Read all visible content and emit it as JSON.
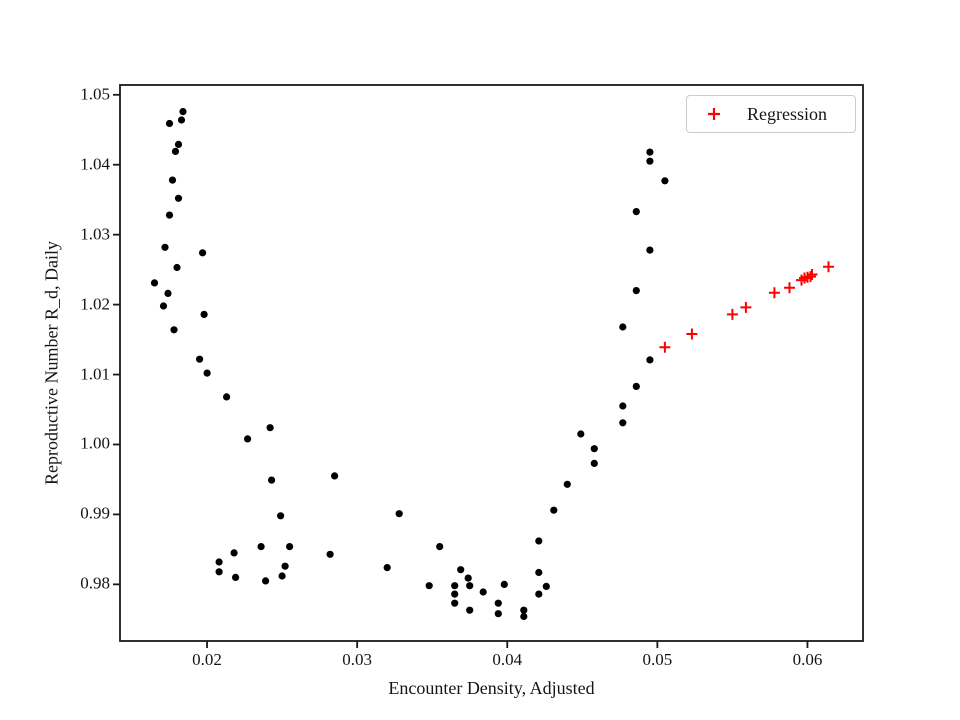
{
  "figure_title": "",
  "legend": {
    "position": "upper right",
    "entries": [
      {
        "label": "Regression",
        "marker": "plus",
        "color": "#ff0000"
      }
    ]
  },
  "chart_data": {
    "type": "scatter",
    "title": "",
    "xlabel": "Encounter Density, Adjusted",
    "ylabel": "Reproductive Number R_d, Daily",
    "xlim": [
      0.0142,
      0.0637
    ],
    "ylim": [
      0.9719,
      1.0514
    ],
    "grid": false,
    "x_ticks": {
      "values": [
        0.02,
        0.03,
        0.04,
        0.05,
        0.06
      ],
      "labels": [
        "0.02",
        "0.03",
        "0.04",
        "0.05",
        "0.06"
      ]
    },
    "y_ticks": {
      "values": [
        0.98,
        0.99,
        1.0,
        1.01,
        1.02,
        1.03,
        1.04,
        1.05
      ],
      "labels": [
        "0.98",
        "0.99",
        "1.00",
        "1.01",
        "1.02",
        "1.03",
        "1.04",
        "1.05"
      ]
    },
    "series": [
      {
        "name": "",
        "marker": "circle",
        "color": "#000000",
        "in_legend": false,
        "points": [
          [
            0.0184,
            1.0476
          ],
          [
            0.0183,
            1.0464
          ],
          [
            0.0175,
            1.0459
          ],
          [
            0.0181,
            1.0429
          ],
          [
            0.0179,
            1.0419
          ],
          [
            0.0177,
            1.0378
          ],
          [
            0.0181,
            1.0352
          ],
          [
            0.0175,
            1.0328
          ],
          [
            0.0172,
            1.0282
          ],
          [
            0.0197,
            1.0274
          ],
          [
            0.018,
            1.0253
          ],
          [
            0.0165,
            1.0231
          ],
          [
            0.0174,
            1.0216
          ],
          [
            0.0171,
            1.0198
          ],
          [
            0.0198,
            1.0186
          ],
          [
            0.0178,
            1.0164
          ],
          [
            0.0195,
            1.0122
          ],
          [
            0.02,
            1.0102
          ],
          [
            0.0213,
            1.0068
          ],
          [
            0.0227,
            1.0008
          ],
          [
            0.0242,
            1.0024
          ],
          [
            0.0243,
            0.9949
          ],
          [
            0.0285,
            0.9955
          ],
          [
            0.0249,
            0.9898
          ],
          [
            0.0236,
            0.9854
          ],
          [
            0.0255,
            0.9854
          ],
          [
            0.0218,
            0.9845
          ],
          [
            0.0282,
            0.9843
          ],
          [
            0.0208,
            0.9832
          ],
          [
            0.0208,
            0.9818
          ],
          [
            0.0219,
            0.981
          ],
          [
            0.0252,
            0.9826
          ],
          [
            0.025,
            0.9812
          ],
          [
            0.0239,
            0.9805
          ],
          [
            0.0328,
            0.9901
          ],
          [
            0.032,
            0.9824
          ],
          [
            0.0355,
            0.9854
          ],
          [
            0.0369,
            0.9821
          ],
          [
            0.0348,
            0.9798
          ],
          [
            0.0374,
            0.9809
          ],
          [
            0.0375,
            0.9798
          ],
          [
            0.0365,
            0.9798
          ],
          [
            0.0365,
            0.9786
          ],
          [
            0.0365,
            0.9773
          ],
          [
            0.0384,
            0.9789
          ],
          [
            0.0398,
            0.98
          ],
          [
            0.0375,
            0.9763
          ],
          [
            0.0394,
            0.9773
          ],
          [
            0.0394,
            0.9758
          ],
          [
            0.0411,
            0.9763
          ],
          [
            0.0411,
            0.9754
          ],
          [
            0.0421,
            0.9862
          ],
          [
            0.0421,
            0.9817
          ],
          [
            0.0426,
            0.9797
          ],
          [
            0.0421,
            0.9786
          ],
          [
            0.0431,
            0.9906
          ],
          [
            0.044,
            0.9943
          ],
          [
            0.0449,
            1.0015
          ],
          [
            0.0458,
            0.9994
          ],
          [
            0.0458,
            0.9973
          ],
          [
            0.0477,
            1.0031
          ],
          [
            0.0477,
            1.0055
          ],
          [
            0.0486,
            1.0083
          ],
          [
            0.0495,
            1.0121
          ],
          [
            0.0477,
            1.0168
          ],
          [
            0.0486,
            1.022
          ],
          [
            0.0495,
            1.0278
          ],
          [
            0.0486,
            1.0333
          ],
          [
            0.0505,
            1.0377
          ],
          [
            0.0495,
            1.0405
          ],
          [
            0.0495,
            1.0418
          ]
        ]
      },
      {
        "name": "Regression",
        "marker": "plus",
        "color": "#ff0000",
        "in_legend": true,
        "points": [
          [
            0.0505,
            1.0139
          ],
          [
            0.0523,
            1.0158
          ],
          [
            0.055,
            1.0186
          ],
          [
            0.0559,
            1.0196
          ],
          [
            0.0578,
            1.0217
          ],
          [
            0.0588,
            1.0224
          ],
          [
            0.0596,
            1.0235
          ],
          [
            0.0598,
            1.0238
          ],
          [
            0.06,
            1.0239
          ],
          [
            0.0602,
            1.024
          ],
          [
            0.0603,
            1.0243
          ],
          [
            0.0614,
            1.0254
          ]
        ]
      }
    ]
  }
}
